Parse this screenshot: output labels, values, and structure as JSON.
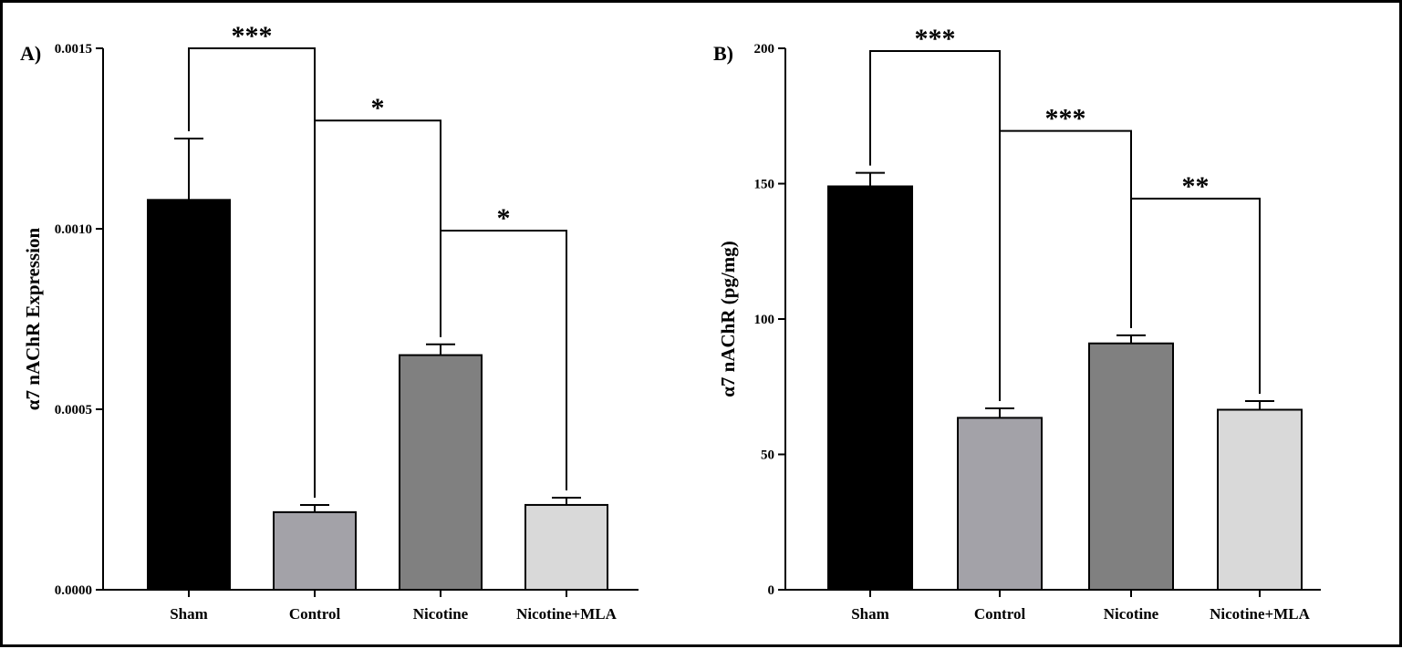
{
  "chart_data": [
    {
      "type": "bar",
      "panel_label": "A)",
      "ylabel": "α7 nAChR  Expression",
      "categories": [
        "Sham",
        "Control",
        "Nicotine",
        "Nicotine+MLA"
      ],
      "values": [
        0.00108,
        0.000215,
        0.00065,
        0.000235
      ],
      "errors": [
        0.00017,
        2e-05,
        3e-05,
        2e-05
      ],
      "colors": [
        "#000000",
        "#a3a2a8",
        "#808080",
        "#d9d9d9"
      ],
      "ylim": [
        0,
        0.0015
      ],
      "yticks": [
        "0.0000",
        "0.0005",
        "0.0010",
        "0.0015"
      ],
      "significance": [
        {
          "from": 0,
          "to": 1,
          "label": "***",
          "y": 0.0015
        },
        {
          "from": 1,
          "to": 2,
          "label": "*",
          "y": 0.0013
        },
        {
          "from": 2,
          "to": 3,
          "label": "*",
          "y": 0.000995
        }
      ]
    },
    {
      "type": "bar",
      "panel_label": "B)",
      "ylabel": "α7 nAChR (pg/mg)",
      "categories": [
        "Sham",
        "Control",
        "Nicotine",
        "Nicotine+MLA"
      ],
      "values": [
        149,
        63.5,
        91,
        66.5
      ],
      "errors": [
        5,
        3.5,
        3,
        3.2
      ],
      "colors": [
        "#000000",
        "#a3a2a8",
        "#808080",
        "#d9d9d9"
      ],
      "ylim": [
        0,
        200
      ],
      "yticks": [
        "0",
        "50",
        "100",
        "150",
        "200"
      ],
      "significance": [
        {
          "from": 0,
          "to": 1,
          "label": "***",
          "y": 199
        },
        {
          "from": 1,
          "to": 2,
          "label": "***",
          "y": 169.5
        },
        {
          "from": 2,
          "to": 3,
          "label": "**",
          "y": 144.5
        }
      ]
    }
  ]
}
